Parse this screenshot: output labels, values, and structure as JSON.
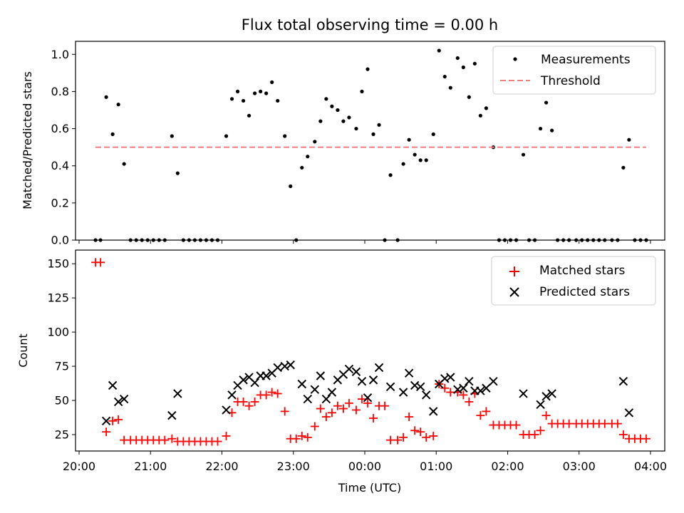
{
  "chart_data": [
    {
      "type": "scatter",
      "title": "Flux total observing time = 0.00 h",
      "ylabel": "Matched/Predicted stars",
      "xlabel": "",
      "xlim": [
        -0.05,
        8.2
      ],
      "ylim": [
        0.0,
        1.07
      ],
      "yticks": [
        0.0,
        0.2,
        0.4,
        0.6,
        0.8,
        1.0
      ],
      "ytick_labels": [
        "0.0",
        "0.2",
        "0.4",
        "0.6",
        "0.8",
        "1.0"
      ],
      "legend_position": "top-right",
      "series": [
        {
          "name": "Measurements",
          "marker": "dot",
          "color": "#000000",
          "points": [
            [
              0.23,
              0.0
            ],
            [
              0.3,
              0.0
            ],
            [
              0.38,
              0.77
            ],
            [
              0.47,
              0.57
            ],
            [
              0.55,
              0.73
            ],
            [
              0.63,
              0.41
            ],
            [
              0.72,
              0.0
            ],
            [
              0.8,
              0.0
            ],
            [
              0.88,
              0.0
            ],
            [
              0.96,
              0.0
            ],
            [
              1.04,
              0.0
            ],
            [
              1.12,
              0.0
            ],
            [
              1.2,
              0.0
            ],
            [
              1.3,
              0.56
            ],
            [
              1.38,
              0.36
            ],
            [
              1.46,
              0.0
            ],
            [
              1.54,
              0.0
            ],
            [
              1.62,
              0.0
            ],
            [
              1.7,
              0.0
            ],
            [
              1.78,
              0.0
            ],
            [
              1.86,
              0.0
            ],
            [
              1.94,
              0.0
            ],
            [
              2.06,
              0.56
            ],
            [
              2.14,
              0.76
            ],
            [
              2.22,
              0.8
            ],
            [
              2.3,
              0.75
            ],
            [
              2.38,
              0.67
            ],
            [
              2.46,
              0.79
            ],
            [
              2.54,
              0.8
            ],
            [
              2.62,
              0.79
            ],
            [
              2.7,
              0.85
            ],
            [
              2.78,
              0.75
            ],
            [
              2.88,
              0.56
            ],
            [
              2.96,
              0.29
            ],
            [
              3.04,
              0.0
            ],
            [
              3.12,
              0.39
            ],
            [
              3.2,
              0.45
            ],
            [
              3.3,
              0.53
            ],
            [
              3.38,
              0.64
            ],
            [
              3.46,
              0.76
            ],
            [
              3.54,
              0.72
            ],
            [
              3.62,
              0.7
            ],
            [
              3.7,
              0.64
            ],
            [
              3.78,
              0.66
            ],
            [
              3.88,
              0.6
            ],
            [
              3.96,
              0.8
            ],
            [
              4.04,
              0.92
            ],
            [
              4.12,
              0.57
            ],
            [
              4.2,
              0.62
            ],
            [
              4.28,
              0.0
            ],
            [
              4.36,
              0.35
            ],
            [
              4.46,
              0.0
            ],
            [
              4.54,
              0.41
            ],
            [
              4.62,
              0.54
            ],
            [
              4.7,
              0.46
            ],
            [
              4.78,
              0.43
            ],
            [
              4.86,
              0.43
            ],
            [
              4.96,
              0.57
            ],
            [
              5.04,
              1.02
            ],
            [
              5.12,
              0.88
            ],
            [
              5.2,
              0.82
            ],
            [
              5.3,
              0.98
            ],
            [
              5.38,
              0.93
            ],
            [
              5.46,
              0.77
            ],
            [
              5.54,
              0.95
            ],
            [
              5.62,
              0.67
            ],
            [
              5.7,
              0.71
            ],
            [
              5.8,
              0.5
            ],
            [
              5.88,
              0.0
            ],
            [
              5.96,
              0.0
            ],
            [
              6.04,
              0.0
            ],
            [
              6.12,
              0.0
            ],
            [
              6.22,
              0.46
            ],
            [
              6.3,
              0.0
            ],
            [
              6.38,
              0.0
            ],
            [
              6.46,
              0.6
            ],
            [
              6.54,
              0.74
            ],
            [
              6.62,
              0.59
            ],
            [
              6.7,
              0.0
            ],
            [
              6.78,
              0.0
            ],
            [
              6.86,
              0.0
            ],
            [
              6.96,
              0.0
            ],
            [
              7.04,
              0.0
            ],
            [
              7.12,
              0.0
            ],
            [
              7.2,
              0.0
            ],
            [
              7.28,
              0.0
            ],
            [
              7.36,
              0.0
            ],
            [
              7.46,
              0.0
            ],
            [
              7.54,
              0.0
            ],
            [
              7.62,
              0.39
            ],
            [
              7.7,
              0.54
            ],
            [
              7.78,
              0.0
            ],
            [
              7.86,
              0.0
            ],
            [
              7.94,
              0.0
            ]
          ]
        },
        {
          "name": "Threshold",
          "marker": "dashed-line",
          "color": "#f08080",
          "points": [
            [
              0.23,
              0.5
            ],
            [
              7.94,
              0.5
            ]
          ]
        }
      ]
    },
    {
      "type": "scatter",
      "title": "",
      "ylabel": "Count",
      "xlabel": "Time (UTC)",
      "xlim": [
        -0.05,
        8.2
      ],
      "ylim": [
        13,
        160
      ],
      "xticks": [
        0,
        1,
        2,
        3,
        4,
        5,
        6,
        7,
        8
      ],
      "xtick_labels": [
        "20:00",
        "21:00",
        "22:00",
        "23:00",
        "00:00",
        "01:00",
        "02:00",
        "03:00",
        "04:00"
      ],
      "yticks": [
        25,
        50,
        75,
        100,
        125,
        150
      ],
      "ytick_labels": [
        "25",
        "50",
        "75",
        "100",
        "125",
        "150"
      ],
      "legend_position": "top-right",
      "series": [
        {
          "name": "Matched stars",
          "marker": "plus",
          "color": "#ff0000",
          "points": [
            [
              0.23,
              151
            ],
            [
              0.3,
              151
            ],
            [
              0.38,
              27
            ],
            [
              0.47,
              35
            ],
            [
              0.55,
              36
            ],
            [
              0.63,
              21
            ],
            [
              0.72,
              21
            ],
            [
              0.8,
              21
            ],
            [
              0.88,
              21
            ],
            [
              0.96,
              21
            ],
            [
              1.04,
              21
            ],
            [
              1.12,
              21
            ],
            [
              1.2,
              21
            ],
            [
              1.3,
              22
            ],
            [
              1.38,
              20
            ],
            [
              1.46,
              20
            ],
            [
              1.54,
              20
            ],
            [
              1.62,
              20
            ],
            [
              1.7,
              20
            ],
            [
              1.78,
              20
            ],
            [
              1.86,
              20
            ],
            [
              1.94,
              20
            ],
            [
              2.06,
              24
            ],
            [
              2.14,
              41
            ],
            [
              2.22,
              49
            ],
            [
              2.3,
              49
            ],
            [
              2.38,
              46
            ],
            [
              2.46,
              49
            ],
            [
              2.54,
              54
            ],
            [
              2.62,
              54
            ],
            [
              2.7,
              56
            ],
            [
              2.78,
              55
            ],
            [
              2.88,
              42
            ],
            [
              2.96,
              22
            ],
            [
              3.04,
              22
            ],
            [
              3.12,
              24
            ],
            [
              3.2,
              23
            ],
            [
              3.3,
              31
            ],
            [
              3.38,
              44
            ],
            [
              3.46,
              38
            ],
            [
              3.54,
              41
            ],
            [
              3.62,
              46
            ],
            [
              3.7,
              44
            ],
            [
              3.78,
              48
            ],
            [
              3.88,
              43
            ],
            [
              3.96,
              51
            ],
            [
              4.04,
              48
            ],
            [
              4.12,
              37
            ],
            [
              4.2,
              46
            ],
            [
              4.28,
              46
            ],
            [
              4.36,
              21
            ],
            [
              4.46,
              21
            ],
            [
              4.54,
              23
            ],
            [
              4.62,
              38
            ],
            [
              4.7,
              28
            ],
            [
              4.78,
              27
            ],
            [
              4.86,
              23
            ],
            [
              4.96,
              24
            ],
            [
              5.04,
              62
            ],
            [
              5.12,
              59
            ],
            [
              5.2,
              56
            ],
            [
              5.3,
              56
            ],
            [
              5.38,
              54
            ],
            [
              5.46,
              49
            ],
            [
              5.54,
              55
            ],
            [
              5.62,
              39
            ],
            [
              5.7,
              42
            ],
            [
              5.8,
              32
            ],
            [
              5.88,
              32
            ],
            [
              5.96,
              32
            ],
            [
              6.04,
              32
            ],
            [
              6.12,
              32
            ],
            [
              6.22,
              25
            ],
            [
              6.3,
              25
            ],
            [
              6.38,
              25
            ],
            [
              6.46,
              28
            ],
            [
              6.54,
              39
            ],
            [
              6.62,
              33
            ],
            [
              6.7,
              33
            ],
            [
              6.78,
              33
            ],
            [
              6.86,
              33
            ],
            [
              6.96,
              33
            ],
            [
              7.04,
              33
            ],
            [
              7.12,
              33
            ],
            [
              7.2,
              33
            ],
            [
              7.28,
              33
            ],
            [
              7.36,
              33
            ],
            [
              7.46,
              33
            ],
            [
              7.54,
              33
            ],
            [
              7.62,
              25
            ],
            [
              7.7,
              22
            ],
            [
              7.78,
              22
            ],
            [
              7.86,
              22
            ],
            [
              7.94,
              22
            ]
          ]
        },
        {
          "name": "Predicted stars",
          "marker": "x",
          "color": "#000000",
          "points": [
            [
              0.38,
              35
            ],
            [
              0.47,
              61
            ],
            [
              0.55,
              49
            ],
            [
              0.63,
              51
            ],
            [
              1.3,
              39
            ],
            [
              1.38,
              55
            ],
            [
              2.06,
              43
            ],
            [
              2.14,
              54
            ],
            [
              2.22,
              61
            ],
            [
              2.3,
              65
            ],
            [
              2.38,
              67
            ],
            [
              2.46,
              63
            ],
            [
              2.54,
              68
            ],
            [
              2.62,
              68
            ],
            [
              2.7,
              70
            ],
            [
              2.78,
              74
            ],
            [
              2.88,
              75
            ],
            [
              2.96,
              76
            ],
            [
              3.12,
              62
            ],
            [
              3.2,
              51
            ],
            [
              3.3,
              58
            ],
            [
              3.38,
              68
            ],
            [
              3.46,
              51
            ],
            [
              3.54,
              56
            ],
            [
              3.62,
              65
            ],
            [
              3.7,
              69
            ],
            [
              3.78,
              73
            ],
            [
              3.88,
              71
            ],
            [
              3.96,
              64
            ],
            [
              4.04,
              52
            ],
            [
              4.12,
              65
            ],
            [
              4.2,
              74
            ],
            [
              4.36,
              60
            ],
            [
              4.54,
              56
            ],
            [
              4.62,
              70
            ],
            [
              4.7,
              61
            ],
            [
              4.78,
              60
            ],
            [
              4.86,
              54
            ],
            [
              4.96,
              42
            ],
            [
              5.04,
              62
            ],
            [
              5.12,
              66
            ],
            [
              5.2,
              67
            ],
            [
              5.3,
              58
            ],
            [
              5.38,
              59
            ],
            [
              5.46,
              64
            ],
            [
              5.54,
              57
            ],
            [
              5.62,
              57
            ],
            [
              5.7,
              59
            ],
            [
              5.8,
              64
            ],
            [
              6.22,
              55
            ],
            [
              6.46,
              47
            ],
            [
              6.54,
              53
            ],
            [
              6.62,
              55
            ],
            [
              7.62,
              64
            ],
            [
              7.7,
              41
            ]
          ]
        }
      ]
    }
  ]
}
